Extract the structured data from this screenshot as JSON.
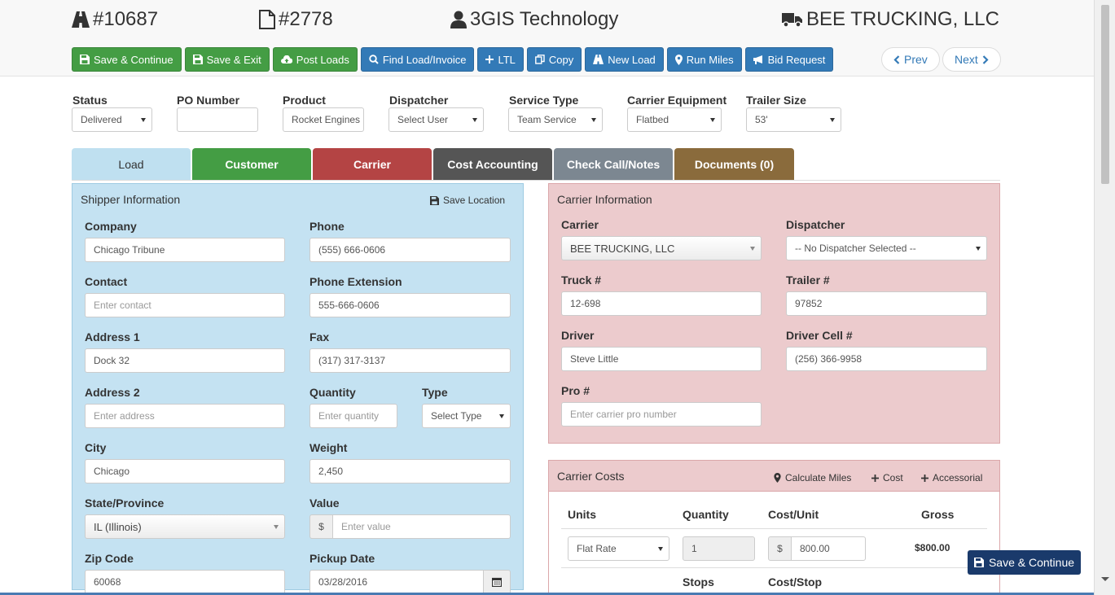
{
  "header": {
    "load_number": "#10687",
    "invoice_number": "#2778",
    "company": "3GIS Technology",
    "carrier_name": "BEE TRUCKING, LLC"
  },
  "toolbar": {
    "save_continue": "Save & Continue",
    "save_exit": "Save & Exit",
    "post_loads": "Post Loads",
    "find_load": "Find Load/Invoice",
    "ltl": "LTL",
    "copy": "Copy",
    "new_load": "New Load",
    "run_miles": "Run Miles",
    "bid_request": "Bid Request",
    "prev": "Prev",
    "next": "Next"
  },
  "filters": {
    "status_label": "Status",
    "status_value": "Delivered",
    "po_label": "PO Number",
    "po_value": "",
    "product_label": "Product",
    "product_value": "Rocket Engines",
    "dispatcher_label": "Dispatcher",
    "dispatcher_value": "Select User",
    "service_label": "Service Type",
    "service_value": "Team Service",
    "equipment_label": "Carrier Equipment",
    "equipment_value": "Flatbed",
    "trailer_label": "Trailer Size",
    "trailer_value": "53'"
  },
  "tabs": [
    {
      "label": "Load",
      "color": "#bfe0f0"
    },
    {
      "label": "Customer",
      "color": "#449d44"
    },
    {
      "label": "Carrier",
      "color": "#b44444"
    },
    {
      "label": "Cost Accounting",
      "color": "#555555"
    },
    {
      "label": "Check Call/Notes",
      "color": "#7c8791"
    },
    {
      "label": "Documents (0)",
      "color": "#8a6b3c"
    }
  ],
  "shipper": {
    "title": "Shipper Information",
    "save_location": "Save Location",
    "company_label": "Company",
    "company_value": "Chicago Tribune",
    "phone_label": "Phone",
    "phone_value": "(555) 666-0606",
    "contact_label": "Contact",
    "contact_placeholder": "Enter contact",
    "phone_ext_label": "Phone Extension",
    "phone_ext_value": "555-666-0606",
    "address1_label": "Address 1",
    "address1_value": "Dock 32",
    "fax_label": "Fax",
    "fax_value": "(317) 317-3137",
    "address2_label": "Address 2",
    "address2_placeholder": "Enter address",
    "quantity_label": "Quantity",
    "quantity_placeholder": "Enter quantity",
    "type_label": "Type",
    "type_value": "Select Type",
    "city_label": "City",
    "city_value": "Chicago",
    "weight_label": "Weight",
    "weight_value": "2,450",
    "state_label": "State/Province",
    "state_value": "IL (Illinois)",
    "value_label": "Value",
    "value_prefix": "$",
    "value_placeholder": "Enter value",
    "zip_label": "Zip Code",
    "zip_value": "60068",
    "pickup_label": "Pickup Date",
    "pickup_value": "03/28/2016"
  },
  "carrier_info": {
    "title": "Carrier Information",
    "carrier_label": "Carrier",
    "carrier_value": "BEE TRUCKING, LLC",
    "dispatcher_label": "Dispatcher",
    "dispatcher_value": "-- No Dispatcher Selected --",
    "truck_label": "Truck #",
    "truck_value": "12-698",
    "trailer_label": "Trailer #",
    "trailer_value": "97852",
    "driver_label": "Driver",
    "driver_value": "Steve Little",
    "driver_cell_label": "Driver Cell #",
    "driver_cell_value": "(256) 366-9958",
    "pro_label": "Pro #",
    "pro_placeholder": "Enter carrier pro number"
  },
  "carrier_costs": {
    "title": "Carrier Costs",
    "calc_miles": "Calculate Miles",
    "cost": "Cost",
    "accessorial": "Accessorial",
    "units_header": "Units",
    "quantity_header": "Quantity",
    "cost_unit_header": "Cost/Unit",
    "gross_header": "Gross",
    "units_value": "Flat Rate",
    "quantity_value": "1",
    "cost_prefix": "$",
    "cost_value": "800.00",
    "gross_value": "$800.00",
    "stops_header": "Stops",
    "cost_stop_header": "Cost/Stop"
  },
  "floating": {
    "save_continue": "Save & Continue"
  }
}
